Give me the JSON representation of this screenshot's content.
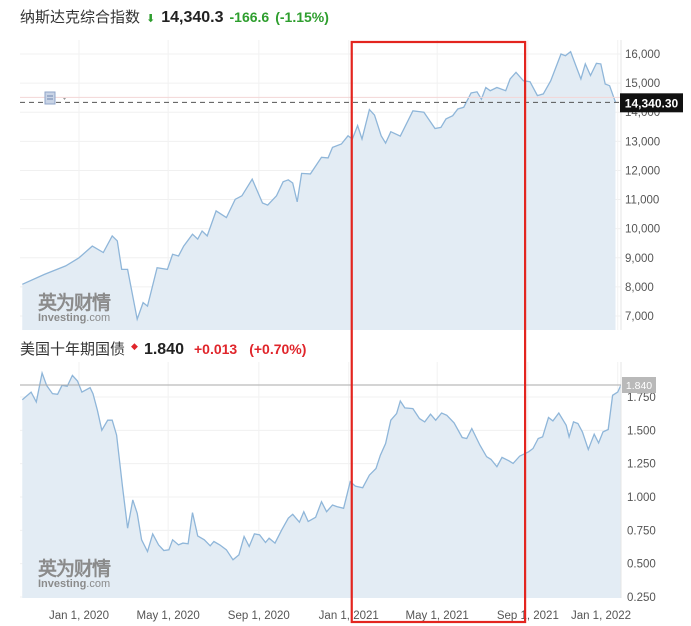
{
  "colors": {
    "down": "#2e9e2e",
    "up": "#e0252b",
    "line": "#8fb6d9",
    "fill": "#e3ecf4",
    "highlight_box": "#e3251f"
  },
  "top_header": {
    "name": "纳斯达克综合指数",
    "arrow_icon": "arrow-down",
    "price": "14,340.3",
    "change": "-166.6",
    "change_pct": "(-1.15%)"
  },
  "bottom_header": {
    "name": "美国十年期国债",
    "arrow_icon": "arrow-up",
    "price": "1.840",
    "change": "+0.013",
    "change_pct": "(+0.70%)"
  },
  "watermark": {
    "cn": "英为财情",
    "en": "Investing",
    "en_suffix": ".com"
  },
  "chart_data": [
    {
      "type": "area",
      "title": "纳斯达克综合指数",
      "ylim": [
        6500,
        16400
      ],
      "yticks": [
        7000,
        8000,
        9000,
        10000,
        11000,
        12000,
        13000,
        14000,
        15000,
        16000
      ],
      "ytick_labels": [
        "7,000",
        "8,000",
        "9,000",
        "10,000",
        "11,000",
        "12,000",
        "13,000",
        "14,000",
        "15,000",
        "16,000"
      ],
      "current_value": 14340.3,
      "current_label": "14,340.30",
      "grid": true,
      "series": [
        {
          "values": [
            [
              "2019-10-16",
              8090
            ],
            [
              "2019-11-15",
              8430
            ],
            [
              "2019-12-14",
              8720
            ],
            [
              "2020-01-01",
              9000
            ],
            [
              "2020-01-19",
              9400
            ],
            [
              "2020-02-03",
              9180
            ],
            [
              "2020-02-15",
              9750
            ],
            [
              "2020-02-22",
              9580
            ],
            [
              "2020-02-28",
              8600
            ],
            [
              "2020-03-07",
              8600
            ],
            [
              "2020-03-20",
              6890
            ],
            [
              "2020-03-28",
              7460
            ],
            [
              "2020-04-03",
              7340
            ],
            [
              "2020-04-16",
              8660
            ],
            [
              "2020-04-30",
              8600
            ],
            [
              "2020-05-07",
              9120
            ],
            [
              "2020-05-15",
              9060
            ],
            [
              "2020-05-22",
              9400
            ],
            [
              "2020-06-03",
              9810
            ],
            [
              "2020-06-10",
              9640
            ],
            [
              "2020-06-16",
              9920
            ],
            [
              "2020-06-23",
              9750
            ],
            [
              "2020-07-05",
              10610
            ],
            [
              "2020-07-19",
              10380
            ],
            [
              "2020-07-31",
              11010
            ],
            [
              "2020-08-09",
              11130
            ],
            [
              "2020-08-23",
              11700
            ],
            [
              "2020-09-06",
              10880
            ],
            [
              "2020-09-13",
              10810
            ],
            [
              "2020-09-25",
              11130
            ],
            [
              "2020-10-04",
              11610
            ],
            [
              "2020-10-11",
              11680
            ],
            [
              "2020-10-17",
              11570
            ],
            [
              "2020-10-23",
              10920
            ],
            [
              "2020-10-29",
              11900
            ],
            [
              "2020-11-10",
              11880
            ],
            [
              "2020-11-25",
              12450
            ],
            [
              "2020-12-04",
              12430
            ],
            [
              "2020-12-10",
              12790
            ],
            [
              "2020-12-22",
              12910
            ],
            [
              "2020-12-31",
              13190
            ],
            [
              "2021-01-06",
              13080
            ],
            [
              "2021-01-13",
              13540
            ],
            [
              "2021-01-19",
              13080
            ],
            [
              "2021-01-29",
              14090
            ],
            [
              "2021-02-05",
              13900
            ],
            [
              "2021-02-14",
              13190
            ],
            [
              "2021-02-20",
              12940
            ],
            [
              "2021-02-27",
              13330
            ],
            [
              "2021-03-12",
              13180
            ],
            [
              "2021-03-29",
              14050
            ],
            [
              "2021-04-13",
              14000
            ],
            [
              "2021-04-28",
              13440
            ],
            [
              "2021-05-06",
              13480
            ],
            [
              "2021-05-13",
              13770
            ],
            [
              "2021-05-22",
              13880
            ],
            [
              "2021-05-29",
              14110
            ],
            [
              "2021-06-06",
              14170
            ],
            [
              "2021-06-16",
              14660
            ],
            [
              "2021-06-24",
              14700
            ],
            [
              "2021-06-30",
              14450
            ],
            [
              "2021-07-06",
              14850
            ],
            [
              "2021-07-12",
              14740
            ],
            [
              "2021-07-21",
              14850
            ],
            [
              "2021-08-02",
              14740
            ],
            [
              "2021-08-08",
              15140
            ],
            [
              "2021-08-16",
              15370
            ],
            [
              "2021-08-26",
              15080
            ],
            [
              "2021-09-04",
              15050
            ],
            [
              "2021-09-14",
              14570
            ],
            [
              "2021-09-22",
              14630
            ],
            [
              "2021-10-02",
              15080
            ],
            [
              "2021-10-16",
              16000
            ],
            [
              "2021-10-22",
              15940
            ],
            [
              "2021-10-29",
              16080
            ],
            [
              "2021-11-06",
              15540
            ],
            [
              "2021-11-12",
              15140
            ],
            [
              "2021-11-18",
              15660
            ],
            [
              "2021-11-25",
              15260
            ],
            [
              "2021-12-03",
              15680
            ],
            [
              "2021-12-09",
              15660
            ],
            [
              "2021-12-15",
              14970
            ],
            [
              "2021-12-21",
              14910
            ],
            [
              "2021-12-29",
              14340
            ]
          ]
        }
      ]
    },
    {
      "type": "area",
      "title": "美国十年期国债",
      "ylim": [
        0.24,
        2.0
      ],
      "yticks": [
        0.25,
        0.5,
        0.75,
        1.0,
        1.25,
        1.5,
        1.75
      ],
      "ytick_labels": [
        "0.250",
        "0.500",
        "0.750",
        "1.000",
        "1.250",
        "1.500",
        "1.750"
      ],
      "current_value": 1.84,
      "current_label": "1.840",
      "grid": true,
      "xticks": [
        "2020-01-01",
        "2020-05-01",
        "2020-09-01",
        "2021-01-01",
        "2021-05-01",
        "2021-09-01",
        "2022-01-01"
      ],
      "xtick_labels": [
        "Jan 1, 2020",
        "May 1, 2020",
        "Sep 1, 2020",
        "Jan 1, 2021",
        "May 1, 2021",
        "Sep 1, 2021",
        "Jan 1, 2022"
      ],
      "series": [
        {
          "values": [
            [
              "2019-10-16",
              1.73
            ],
            [
              "2019-10-28",
              1.787
            ],
            [
              "2019-11-04",
              1.713
            ],
            [
              "2019-11-12",
              1.93
            ],
            [
              "2019-11-18",
              1.837
            ],
            [
              "2019-11-26",
              1.775
            ],
            [
              "2019-12-03",
              1.77
            ],
            [
              "2019-12-09",
              1.837
            ],
            [
              "2019-12-16",
              1.83
            ],
            [
              "2019-12-23",
              1.912
            ],
            [
              "2019-12-30",
              1.87
            ],
            [
              "2020-01-05",
              1.787
            ],
            [
              "2020-01-16",
              1.82
            ],
            [
              "2020-01-20",
              1.775
            ],
            [
              "2020-01-26",
              1.65
            ],
            [
              "2020-02-01",
              1.501
            ],
            [
              "2020-02-09",
              1.576
            ],
            [
              "2020-02-15",
              1.576
            ],
            [
              "2020-02-21",
              1.464
            ],
            [
              "2020-02-29",
              1.077
            ],
            [
              "2020-03-07",
              0.766
            ],
            [
              "2020-03-14",
              0.978
            ],
            [
              "2020-03-20",
              0.878
            ],
            [
              "2020-03-26",
              0.679
            ],
            [
              "2020-04-03",
              0.591
            ],
            [
              "2020-04-10",
              0.723
            ],
            [
              "2020-04-18",
              0.641
            ],
            [
              "2020-04-25",
              0.599
            ],
            [
              "2020-05-02",
              0.604
            ],
            [
              "2020-05-07",
              0.679
            ],
            [
              "2020-05-15",
              0.641
            ],
            [
              "2020-05-21",
              0.654
            ],
            [
              "2020-05-28",
              0.649
            ],
            [
              "2020-06-03",
              0.883
            ],
            [
              "2020-06-10",
              0.708
            ],
            [
              "2020-06-19",
              0.679
            ],
            [
              "2020-06-27",
              0.634
            ],
            [
              "2020-07-02",
              0.666
            ],
            [
              "2020-07-10",
              0.641
            ],
            [
              "2020-07-19",
              0.604
            ],
            [
              "2020-07-28",
              0.529
            ],
            [
              "2020-08-05",
              0.566
            ],
            [
              "2020-08-12",
              0.704
            ],
            [
              "2020-08-19",
              0.629
            ],
            [
              "2020-08-26",
              0.723
            ],
            [
              "2020-09-02",
              0.716
            ],
            [
              "2020-09-10",
              0.659
            ],
            [
              "2020-09-15",
              0.691
            ],
            [
              "2020-09-23",
              0.654
            ],
            [
              "2020-10-02",
              0.753
            ],
            [
              "2020-10-11",
              0.841
            ],
            [
              "2020-10-17",
              0.87
            ],
            [
              "2020-10-26",
              0.811
            ],
            [
              "2020-11-01",
              0.89
            ],
            [
              "2020-11-07",
              0.816
            ],
            [
              "2020-11-17",
              0.848
            ],
            [
              "2020-11-25",
              0.965
            ],
            [
              "2020-12-02",
              0.89
            ],
            [
              "2020-12-10",
              0.94
            ],
            [
              "2020-12-16",
              0.928
            ],
            [
              "2020-12-25",
              0.915
            ],
            [
              "2021-01-03",
              1.115
            ],
            [
              "2021-01-10",
              1.082
            ],
            [
              "2021-01-20",
              1.07
            ],
            [
              "2021-01-29",
              1.164
            ],
            [
              "2021-02-07",
              1.214
            ],
            [
              "2021-02-13",
              1.314
            ],
            [
              "2021-02-20",
              1.401
            ],
            [
              "2021-02-27",
              1.576
            ],
            [
              "2021-03-07",
              1.626
            ],
            [
              "2021-03-12",
              1.72
            ],
            [
              "2021-03-18",
              1.668
            ],
            [
              "2021-03-29",
              1.663
            ],
            [
              "2021-04-07",
              1.588
            ],
            [
              "2021-04-14",
              1.563
            ],
            [
              "2021-04-22",
              1.621
            ],
            [
              "2021-04-29",
              1.576
            ],
            [
              "2021-05-07",
              1.63
            ],
            [
              "2021-05-14",
              1.613
            ],
            [
              "2021-05-24",
              1.556
            ],
            [
              "2021-06-04",
              1.446
            ],
            [
              "2021-06-10",
              1.439
            ],
            [
              "2021-06-17",
              1.513
            ],
            [
              "2021-06-28",
              1.389
            ],
            [
              "2021-07-07",
              1.302
            ],
            [
              "2021-07-13",
              1.282
            ],
            [
              "2021-07-21",
              1.227
            ],
            [
              "2021-07-28",
              1.297
            ],
            [
              "2021-08-06",
              1.272
            ],
            [
              "2021-08-12",
              1.252
            ],
            [
              "2021-08-21",
              1.307
            ],
            [
              "2021-09-02",
              1.339
            ],
            [
              "2021-09-08",
              1.364
            ],
            [
              "2021-09-15",
              1.439
            ],
            [
              "2021-09-21",
              1.451
            ],
            [
              "2021-09-29",
              1.596
            ],
            [
              "2021-10-05",
              1.571
            ],
            [
              "2021-10-13",
              1.63
            ],
            [
              "2021-10-23",
              1.538
            ],
            [
              "2021-10-27",
              1.451
            ],
            [
              "2021-11-02",
              1.563
            ],
            [
              "2021-11-08",
              1.551
            ],
            [
              "2021-11-14",
              1.488
            ],
            [
              "2021-11-22",
              1.356
            ],
            [
              "2021-11-30",
              1.471
            ],
            [
              "2021-12-06",
              1.406
            ],
            [
              "2021-12-12",
              1.488
            ],
            [
              "2021-12-19",
              1.506
            ],
            [
              "2021-12-25",
              1.763
            ],
            [
              "2022-01-01",
              1.787
            ],
            [
              "2022-01-07",
              1.84
            ]
          ]
        }
      ]
    }
  ],
  "highlight": {
    "from": "2021-01-01",
    "to": "2021-08-31"
  }
}
